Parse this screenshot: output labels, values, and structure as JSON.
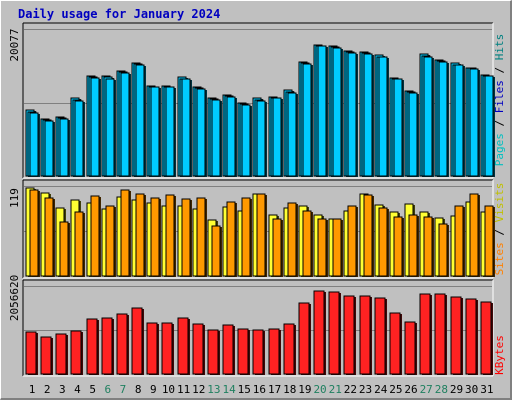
{
  "window": {
    "title": "Daily usage for January 2024"
  },
  "colors": {
    "hits": "#00ccff",
    "files": "#00ccff",
    "pages": "#00ccff",
    "visits": "#ffff33",
    "sites": "#ff9900",
    "kbytes": "#ff2222",
    "weekday_label": "#000000",
    "weekend_label": "#208060",
    "hits_label": "#008080",
    "files_label": "#0000c0",
    "pages_label": "#00c0c0",
    "visits_label": "#c0c000",
    "sites_label": "#ff8000",
    "kbytes_label": "#ff0000"
  },
  "chart_data": [
    {
      "type": "bar",
      "title": "Daily usage for January 2024",
      "categories": [
        "1",
        "2",
        "3",
        "4",
        "5",
        "6",
        "7",
        "8",
        "9",
        "10",
        "11",
        "12",
        "13",
        "14",
        "15",
        "16",
        "17",
        "18",
        "19",
        "20",
        "21",
        "22",
        "23",
        "24",
        "25",
        "26",
        "27",
        "28",
        "29",
        "30",
        "31"
      ],
      "weekend_days": [
        "6",
        "7",
        "13",
        "14",
        "20",
        "21",
        "27",
        "28"
      ],
      "ymax_label": "20077",
      "ylim": [
        0,
        20077
      ],
      "series": [
        {
          "name": "Hits",
          "values": [
            9000,
            7800,
            8100,
            10600,
            13600,
            13600,
            14300,
            15500,
            12300,
            12300,
            13500,
            12200,
            10700,
            11100,
            10000,
            10600,
            10800,
            11700,
            15600,
            17900,
            17800,
            17100,
            17000,
            16500,
            13400,
            11600,
            16600,
            15800,
            15400,
            14800,
            13800
          ]
        },
        {
          "name": "Files",
          "values": [
            8800,
            7600,
            7900,
            10400,
            13500,
            13500,
            14200,
            15300,
            12200,
            12200,
            13300,
            12000,
            10500,
            10900,
            9800,
            10400,
            10700,
            11500,
            15400,
            17800,
            17600,
            16900,
            16800,
            16300,
            13300,
            11500,
            16400,
            15700,
            15200,
            14700,
            13700
          ]
        },
        {
          "name": "Pages",
          "values": [
            8600,
            7500,
            7800,
            10200,
            13400,
            13300,
            14100,
            15100,
            12100,
            12100,
            13200,
            11900,
            10400,
            10800,
            9700,
            10300,
            10600,
            11400,
            15300,
            17700,
            17500,
            16800,
            16700,
            16200,
            13200,
            11400,
            16300,
            15600,
            15100,
            14600,
            13600
          ]
        }
      ]
    },
    {
      "type": "bar",
      "ymax_label": "119",
      "ylim": [
        0,
        119
      ],
      "series": [
        {
          "name": "Visits",
          "values": [
            116,
            110,
            90,
            101,
            97,
            88,
            105,
            101,
            96,
            92,
            92,
            88,
            74,
            91,
            86,
            109,
            80,
            90,
            93,
            80,
            76,
            86,
            109,
            94,
            84,
            95,
            84,
            77,
            79,
            98,
            84
          ]
        },
        {
          "name": "Sites",
          "values": [
            114,
            103,
            71,
            84,
            106,
            92,
            114,
            108,
            103,
            107,
            102,
            103,
            66,
            98,
            103,
            108,
            75,
            96,
            86,
            75,
            75,
            92,
            107,
            90,
            78,
            81,
            78,
            69,
            92,
            108,
            93
          ]
        }
      ]
    },
    {
      "type": "bar",
      "ymax_label": "2056620",
      "ylim": [
        0,
        2056620
      ],
      "series": [
        {
          "name": "KBytes",
          "values": [
            985000,
            855000,
            925000,
            1015000,
            1292000,
            1312000,
            1405000,
            1535000,
            1188000,
            1188000,
            1302000,
            1171000,
            1032000,
            1152000,
            1063000,
            1032000,
            1052000,
            1162000,
            1668000,
            1947000,
            1916000,
            1826000,
            1826000,
            1786000,
            1437000,
            1221000,
            1876000,
            1876000,
            1796000,
            1746000,
            1678000
          ]
        }
      ]
    }
  ]
}
